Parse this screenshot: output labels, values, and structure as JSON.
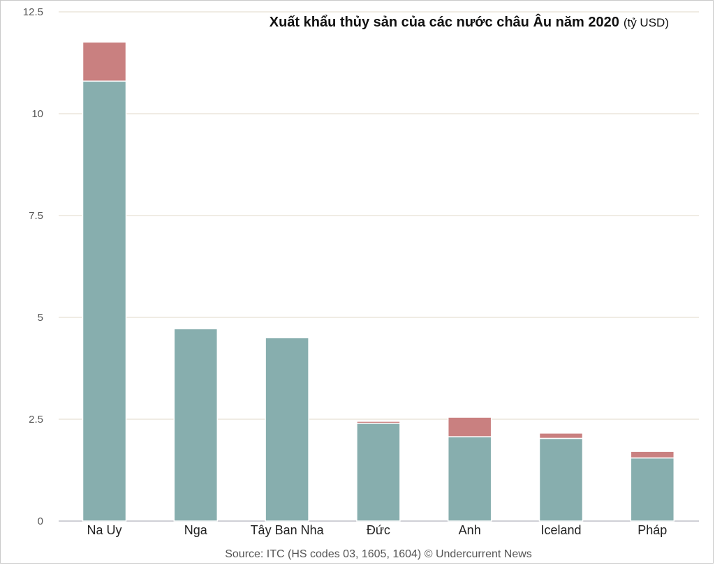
{
  "chart_data": {
    "type": "bar",
    "stacked": true,
    "title": "Xuất khẩu thủy sản của các nước châu Âu năm 2020",
    "unit": "(tỷ USD)",
    "source": "Source: ITC (HS codes 03, 1605, 1604) © Undercurrent News",
    "categories": [
      "Na Uy",
      "Nga",
      "Tây Ban Nha",
      "Đức",
      "Anh",
      "Iceland",
      "Pháp"
    ],
    "series": [
      {
        "color": "#87aeae",
        "values": [
          10.8,
          4.72,
          4.5,
          2.4,
          2.07,
          2.03,
          1.55
        ]
      },
      {
        "color": "#c98080",
        "values": [
          0.96,
          0,
          0,
          0.05,
          0.48,
          0.13,
          0.16
        ]
      }
    ],
    "yticks": [
      0,
      2.5,
      5,
      7.5,
      10,
      12.5
    ],
    "ytick_labels": [
      "0",
      "2.5",
      "5",
      "7.5",
      "10",
      "12.5"
    ],
    "ylim": [
      0,
      12.5
    ],
    "grid": true,
    "grid_color": "#ece6dc",
    "legend": false
  }
}
